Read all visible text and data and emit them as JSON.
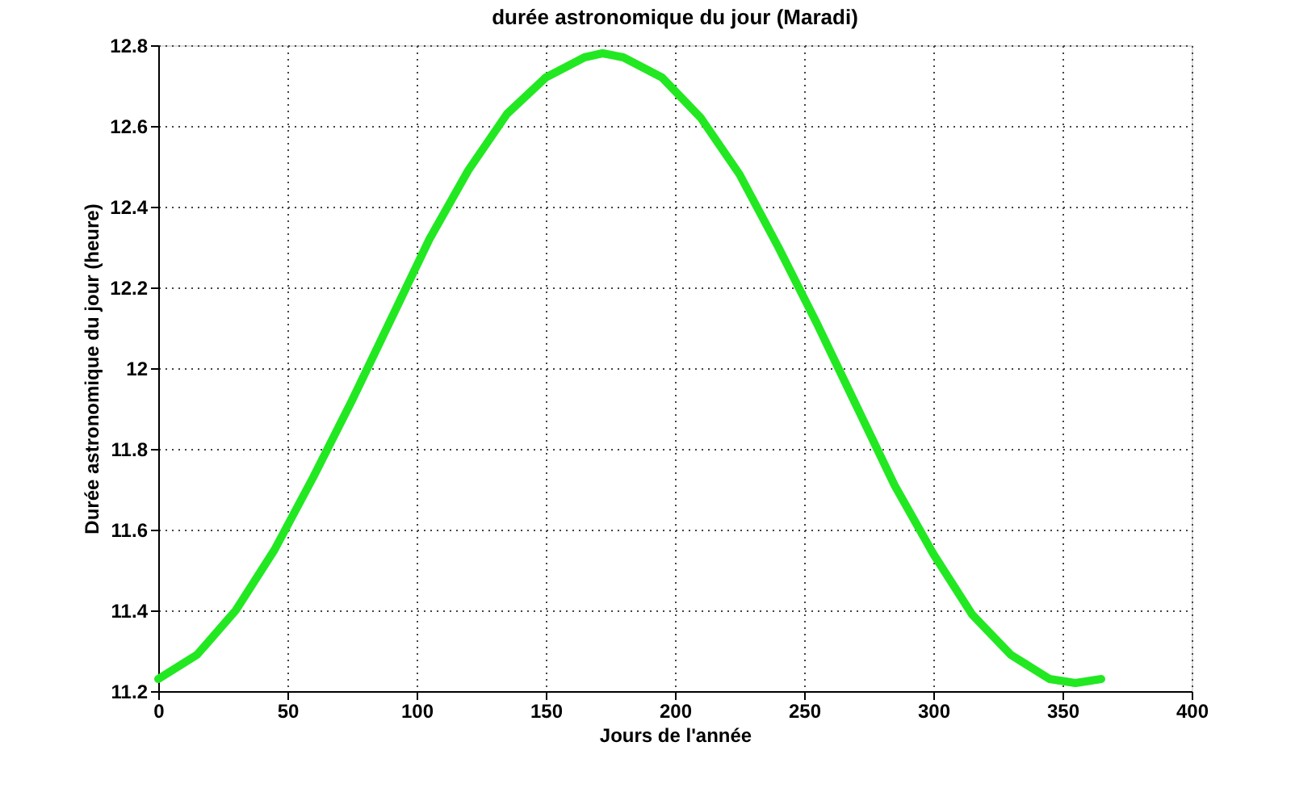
{
  "chart_data": {
    "type": "line",
    "title": "durée astronomique du jour (Maradi)",
    "xlabel": "Jours de l'année",
    "ylabel": "Durée astronomique du jour (heure)",
    "x": [
      0,
      15,
      30,
      45,
      60,
      75,
      90,
      105,
      120,
      135,
      150,
      165,
      172,
      180,
      195,
      210,
      225,
      240,
      255,
      270,
      285,
      300,
      315,
      330,
      345,
      355,
      365
    ],
    "series": [
      {
        "color": "#22e822",
        "values": [
          11.23,
          11.29,
          11.4,
          11.55,
          11.73,
          11.92,
          12.12,
          12.32,
          12.49,
          12.63,
          12.72,
          12.77,
          12.78,
          12.77,
          12.72,
          12.62,
          12.48,
          12.3,
          12.11,
          11.91,
          11.71,
          11.54,
          11.39,
          11.29,
          11.23,
          11.22,
          11.23
        ]
      }
    ],
    "xlim": [
      0,
      400
    ],
    "xticks": [
      0,
      50,
      100,
      150,
      200,
      250,
      300,
      350,
      400
    ],
    "ylim": [
      11.2,
      12.8
    ],
    "yticks": [
      11.2,
      11.4,
      11.6,
      11.8,
      12,
      12.2,
      12.4,
      12.6,
      12.8
    ],
    "grid": true,
    "legend": false,
    "marker": "none",
    "line_style": "solid"
  }
}
